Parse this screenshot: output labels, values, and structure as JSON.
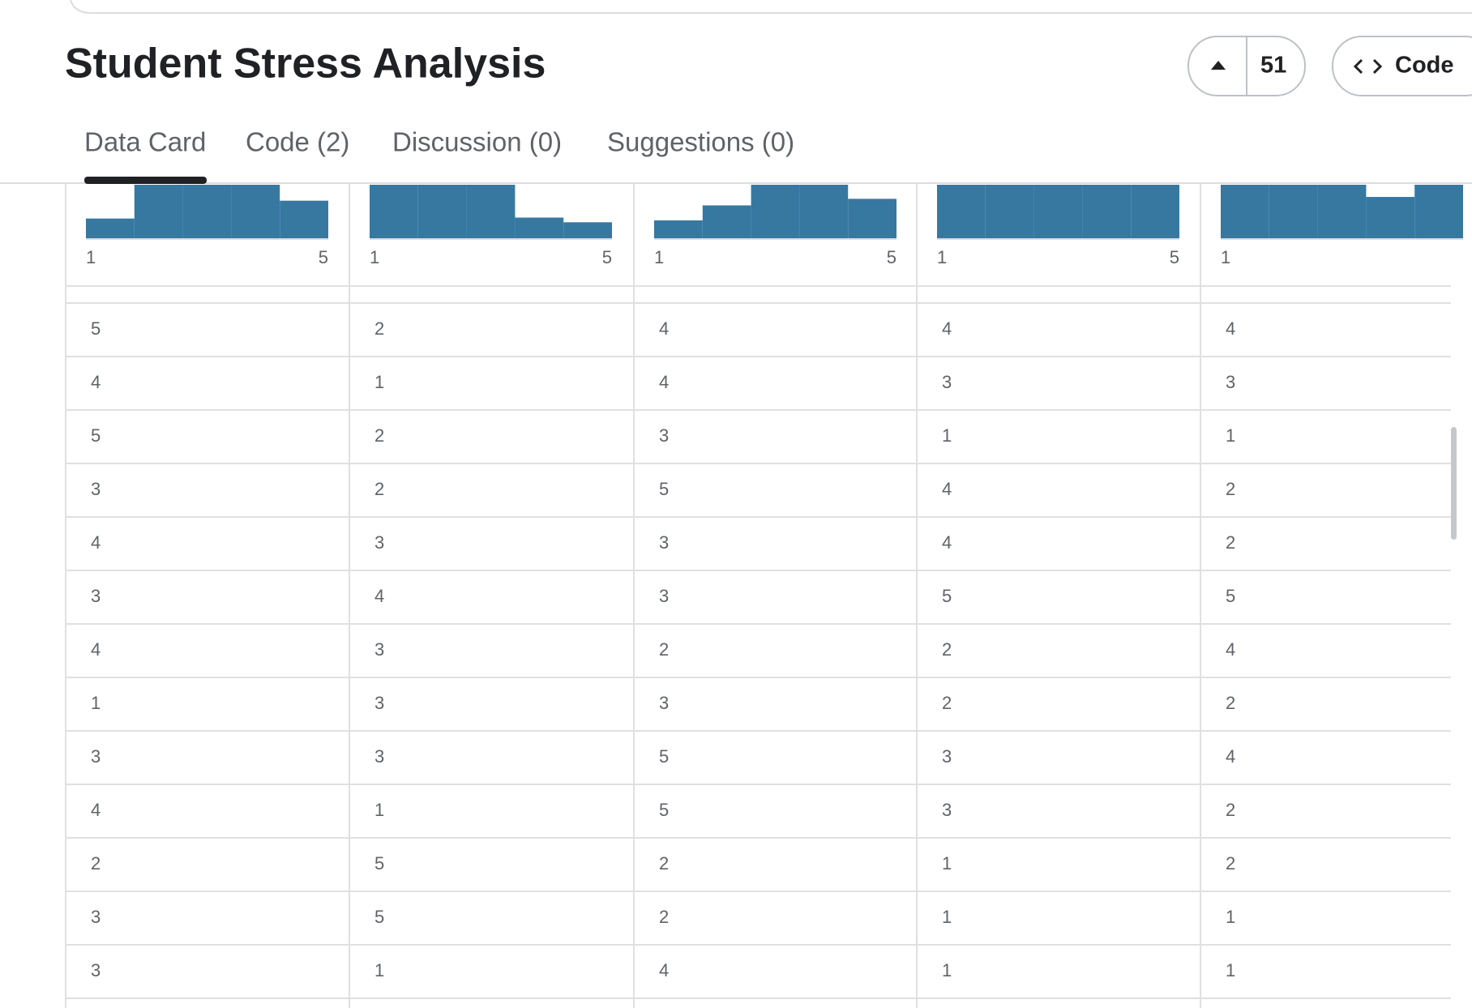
{
  "header": {
    "title": "Student Stress Analysis",
    "upvotes": 51,
    "code_button": "Code"
  },
  "tabs": [
    "Data Card",
    "Code (2)",
    "Discussion (0)",
    "Suggestions (0)"
  ],
  "table": {
    "columns": [
      {
        "histogram": [
          21,
          57,
          57,
          57,
          40
        ],
        "min": 1,
        "max": 5
      },
      {
        "histogram": [
          57,
          57,
          57,
          22,
          17
        ],
        "min": 1,
        "max": 5
      },
      {
        "histogram": [
          19,
          35,
          57,
          57,
          42
        ],
        "min": 1,
        "max": 5
      },
      {
        "histogram": [
          57,
          57,
          57,
          57,
          57
        ],
        "min": 1,
        "max": 5
      },
      {
        "histogram": [
          57,
          57,
          57,
          44,
          57
        ],
        "min": 1
      }
    ],
    "rows": [
      [
        5,
        2,
        4,
        4,
        4
      ],
      [
        4,
        1,
        4,
        3,
        3
      ],
      [
        5,
        2,
        3,
        1,
        1
      ],
      [
        3,
        2,
        5,
        4,
        2
      ],
      [
        4,
        3,
        3,
        4,
        2
      ],
      [
        3,
        4,
        3,
        5,
        5
      ],
      [
        4,
        3,
        2,
        2,
        4
      ],
      [
        1,
        3,
        3,
        2,
        2
      ],
      [
        3,
        3,
        5,
        3,
        4
      ],
      [
        4,
        1,
        5,
        3,
        2
      ],
      [
        2,
        5,
        2,
        1,
        2
      ],
      [
        3,
        5,
        2,
        1,
        1
      ],
      [
        3,
        1,
        4,
        1,
        1
      ]
    ]
  }
}
